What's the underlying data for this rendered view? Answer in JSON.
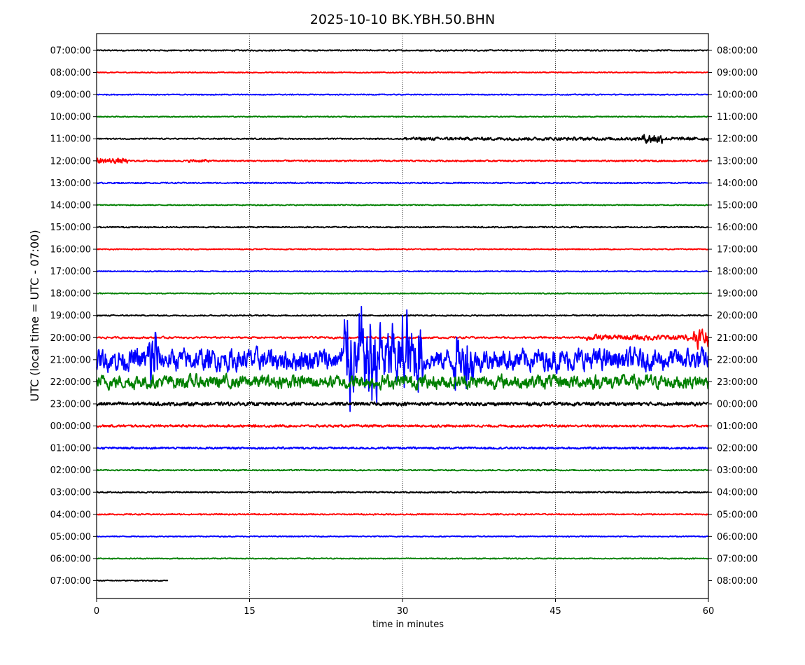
{
  "chart_data": {
    "type": "line",
    "title": "2025-10-10 BK.YBH.50.BHN",
    "xlabel": "time in minutes",
    "ylabel": "UTC (local time = UTC - 07:00)",
    "xlim": [
      0,
      60
    ],
    "xticks": [
      "0",
      "15",
      "30",
      "45",
      "60"
    ],
    "grid": "vertical dotted at 15, 30, 45",
    "colors": [
      "#000000",
      "#ff0000",
      "#0000ff",
      "#008000"
    ],
    "rows": [
      {
        "left": "07:00:00",
        "right": "08:00:00",
        "amp": 0.05,
        "end": 60
      },
      {
        "left": "08:00:00",
        "right": "09:00:00",
        "amp": 0.04,
        "end": 60
      },
      {
        "left": "09:00:00",
        "right": "10:00:00",
        "amp": 0.04,
        "end": 60
      },
      {
        "left": "10:00:00",
        "right": "11:00:00",
        "amp": 0.04,
        "end": 60
      },
      {
        "left": "11:00:00",
        "right": "12:00:00",
        "amp": 0.05,
        "end": 60,
        "bursts": [
          [
            30,
            60,
            0.12
          ],
          [
            53.5,
            55.5,
            0.35
          ]
        ]
      },
      {
        "left": "12:00:00",
        "right": "13:00:00",
        "amp": 0.06,
        "end": 60,
        "bursts": [
          [
            0,
            3,
            0.2
          ],
          [
            9,
            11,
            0.12
          ]
        ]
      },
      {
        "left": "13:00:00",
        "right": "14:00:00",
        "amp": 0.05,
        "end": 60
      },
      {
        "left": "14:00:00",
        "right": "15:00:00",
        "amp": 0.04,
        "end": 60
      },
      {
        "left": "15:00:00",
        "right": "16:00:00",
        "amp": 0.05,
        "end": 60
      },
      {
        "left": "16:00:00",
        "right": "17:00:00",
        "amp": 0.04,
        "end": 60
      },
      {
        "left": "17:00:00",
        "right": "18:00:00",
        "amp": 0.04,
        "end": 60
      },
      {
        "left": "18:00:00",
        "right": "19:00:00",
        "amp": 0.04,
        "end": 60
      },
      {
        "left": "19:00:00",
        "right": "20:00:00",
        "amp": 0.05,
        "end": 60
      },
      {
        "left": "20:00:00",
        "right": "21:00:00",
        "amp": 0.04,
        "end": 60,
        "bursts": [
          [
            48,
            58,
            0.12
          ],
          [
            58.5,
            60,
            0.9
          ]
        ]
      },
      {
        "left": "21:00:00",
        "right": "22:00:00",
        "amp": 0.45,
        "end": 60,
        "bursts": [
          [
            5,
            6,
            2.6
          ],
          [
            24,
            32,
            2.7
          ],
          [
            35,
            37,
            1.8
          ]
        ]
      },
      {
        "left": "22:00:00",
        "right": "23:00:00",
        "amp": 0.28,
        "end": 60
      },
      {
        "left": "23:00:00",
        "right": "00:00:00",
        "amp": 0.14,
        "end": 60
      },
      {
        "left": "00:00:00",
        "right": "01:00:00",
        "amp": 0.09,
        "end": 60
      },
      {
        "left": "01:00:00",
        "right": "02:00:00",
        "amp": 0.08,
        "end": 60
      },
      {
        "left": "02:00:00",
        "right": "03:00:00",
        "amp": 0.05,
        "end": 60
      },
      {
        "left": "03:00:00",
        "right": "04:00:00",
        "amp": 0.05,
        "end": 60
      },
      {
        "left": "04:00:00",
        "right": "05:00:00",
        "amp": 0.05,
        "end": 60
      },
      {
        "left": "05:00:00",
        "right": "06:00:00",
        "amp": 0.04,
        "end": 60
      },
      {
        "left": "06:00:00",
        "right": "07:00:00",
        "amp": 0.04,
        "end": 60
      },
      {
        "left": "07:00:00",
        "right": "08:00:00",
        "amp": 0.04,
        "end": 7
      }
    ]
  }
}
